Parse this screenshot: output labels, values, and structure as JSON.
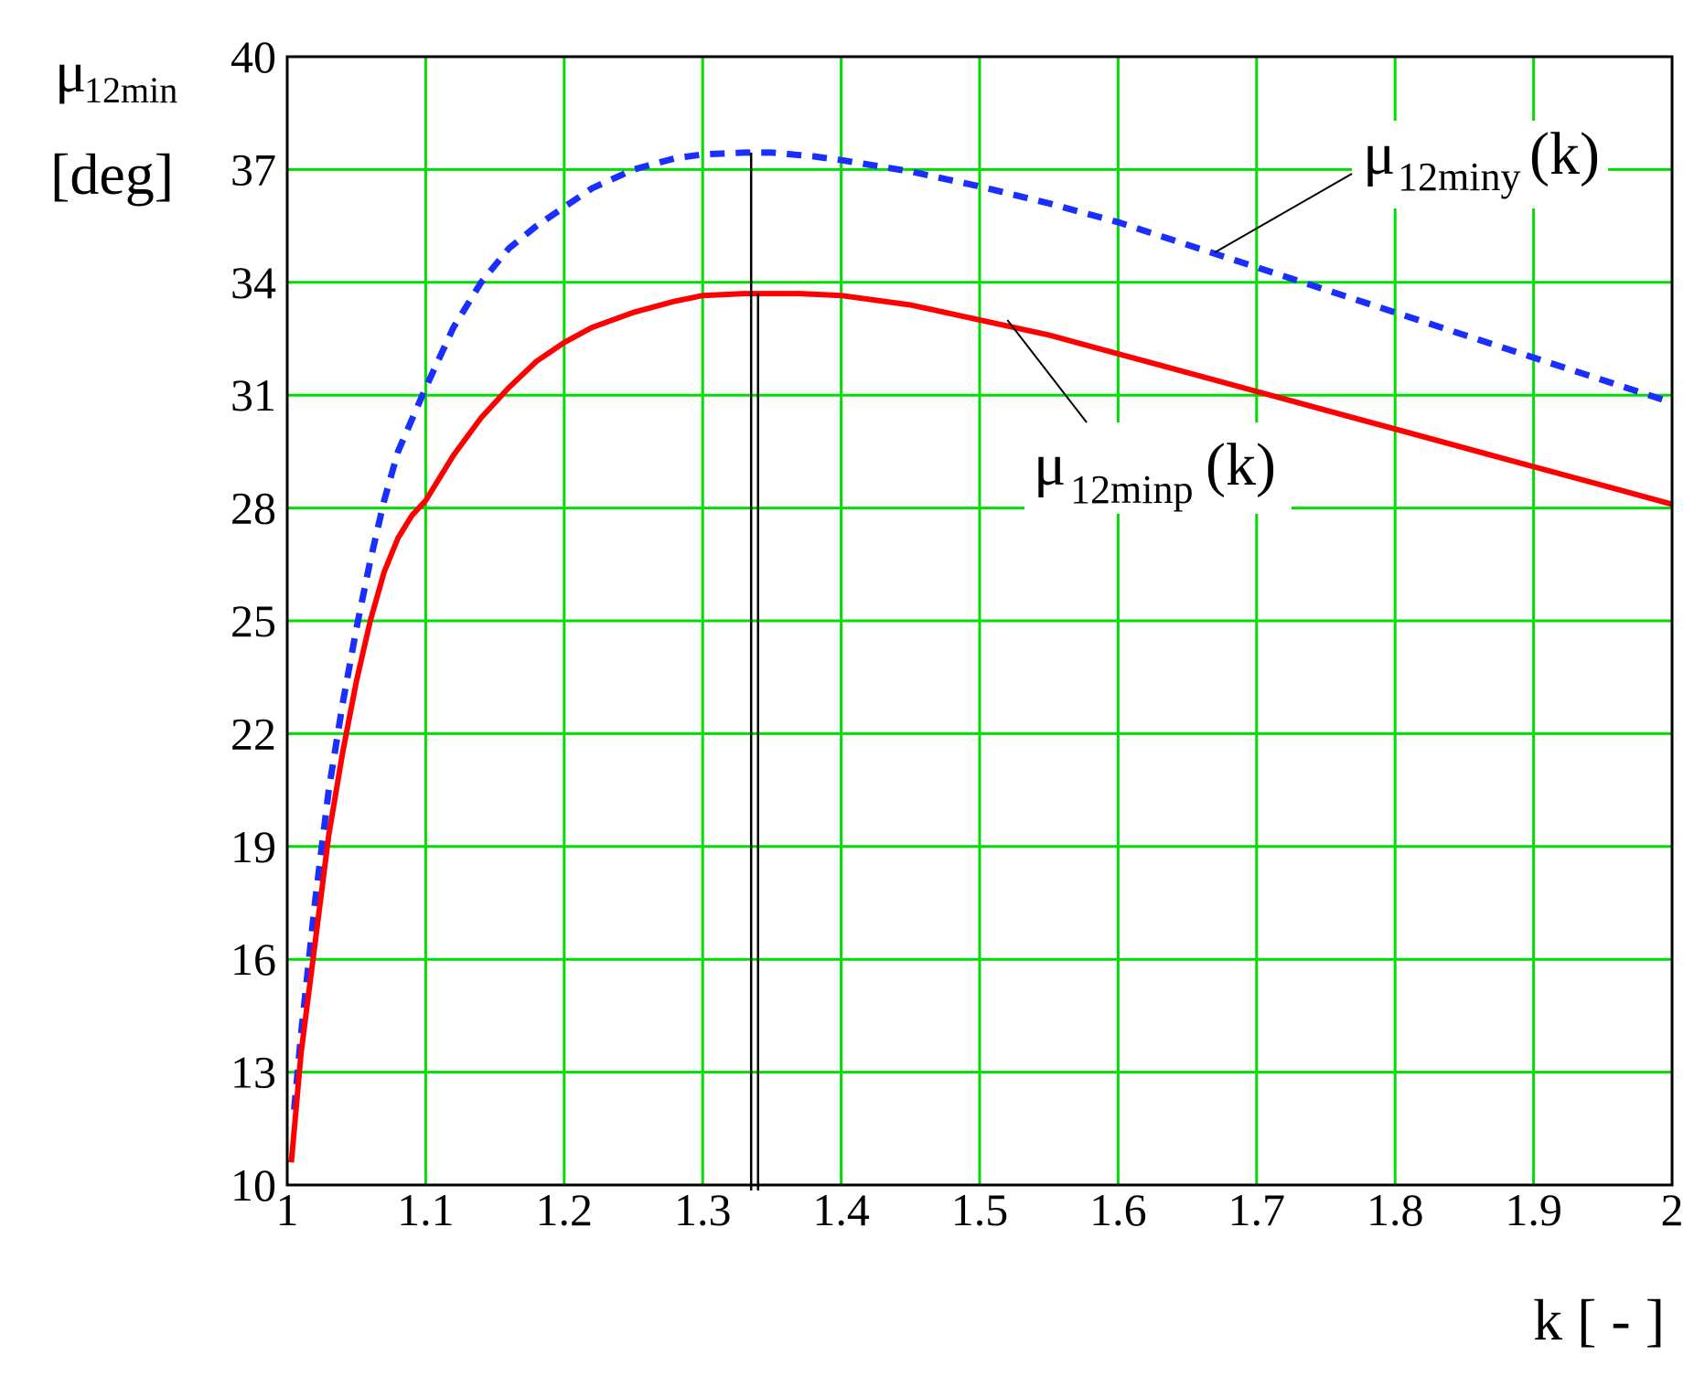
{
  "chart_data": {
    "type": "line",
    "title": "",
    "xlabel": "k [ - ]",
    "ylabel": {
      "symbol": "μ",
      "subscript": "12min",
      "unit": "[deg]"
    },
    "xlim": [
      1,
      2
    ],
    "ylim": [
      10,
      40
    ],
    "xticks": [
      "1",
      "1.1",
      "1.2",
      "1.3",
      "1.4",
      "1.5",
      "1.6",
      "1.7",
      "1.8",
      "1.9",
      "2"
    ],
    "yticks": [
      "10",
      "13",
      "16",
      "19",
      "22",
      "25",
      "28",
      "31",
      "34",
      "37",
      "40"
    ],
    "grid": true,
    "colors": {
      "grid": "#00dd00",
      "frame": "#000000",
      "series_dotted": "#1a2eff",
      "series_solid": "#ff0000",
      "marker": "#000000"
    },
    "series": [
      {
        "name": "μ12miny(k)",
        "symbol": "μ",
        "subscript": "12miny",
        "arg": "(k)",
        "style": "dotted",
        "color": "#1a2eff",
        "x": [
          1.005,
          1.01,
          1.02,
          1.03,
          1.04,
          1.05,
          1.06,
          1.07,
          1.08,
          1.1,
          1.12,
          1.14,
          1.16,
          1.18,
          1.2,
          1.22,
          1.25,
          1.28,
          1.3,
          1.33,
          1.35,
          1.38,
          1.4,
          1.45,
          1.5,
          1.55,
          1.6,
          1.65,
          1.7,
          1.75,
          1.8,
          1.85,
          1.9,
          1.95,
          2.0
        ],
        "y": [
          12.0,
          14.0,
          17.5,
          20.5,
          22.8,
          24.8,
          26.6,
          28.2,
          29.5,
          31.2,
          32.8,
          34.0,
          34.9,
          35.5,
          36.0,
          36.5,
          37.0,
          37.3,
          37.4,
          37.45,
          37.45,
          37.35,
          37.25,
          36.95,
          36.55,
          36.1,
          35.6,
          35.0,
          34.4,
          33.8,
          33.2,
          32.6,
          32.0,
          31.4,
          30.8
        ]
      },
      {
        "name": "μ12minp(k)",
        "symbol": "μ",
        "subscript": "12minp",
        "arg": "(k)",
        "style": "solid",
        "color": "#ff0000",
        "x": [
          1.003,
          1.01,
          1.02,
          1.03,
          1.04,
          1.05,
          1.06,
          1.07,
          1.08,
          1.09,
          1.1,
          1.12,
          1.14,
          1.16,
          1.18,
          1.2,
          1.22,
          1.25,
          1.28,
          1.3,
          1.33,
          1.35,
          1.37,
          1.4,
          1.45,
          1.5,
          1.55,
          1.6,
          1.65,
          1.7,
          1.75,
          1.8,
          1.85,
          1.9,
          1.95,
          2.0
        ],
        "y": [
          10.6,
          13.5,
          16.4,
          19.3,
          21.5,
          23.4,
          25.0,
          26.3,
          27.2,
          27.8,
          28.2,
          29.4,
          30.4,
          31.2,
          31.9,
          32.4,
          32.8,
          33.2,
          33.5,
          33.65,
          33.7,
          33.7,
          33.7,
          33.65,
          33.4,
          33.0,
          32.6,
          32.1,
          31.6,
          31.1,
          30.6,
          30.1,
          29.6,
          29.1,
          28.6,
          28.1
        ]
      }
    ],
    "annotations": [
      {
        "type": "vertical-line",
        "x": 1.335,
        "y_top": 37.45
      },
      {
        "type": "vertical-line",
        "x": 1.34,
        "y_top": 33.7
      }
    ]
  }
}
